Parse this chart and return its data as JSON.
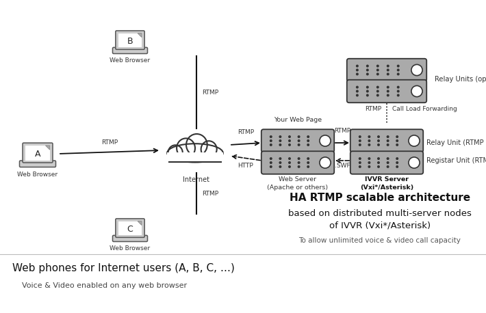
{
  "bg_color": "#ffffff",
  "bottom_title": "Web phones for Internet users (A, B, C, …)",
  "bottom_subtitle": "Voice & Video enabled on any web browser",
  "ha_title_line1": "HA RTMP scalable architecture",
  "ha_title_line2": "based on distributed multi-server nodes",
  "ha_title_line3": "of IVVR (Vxi*/Asterisk)",
  "ha_subtitle": "To allow unlimited voice & video call capacity",
  "line_color": "#111111",
  "label_color": "#333333",
  "gray_server": "#999999",
  "white": "#ffffff",
  "dark": "#222222"
}
